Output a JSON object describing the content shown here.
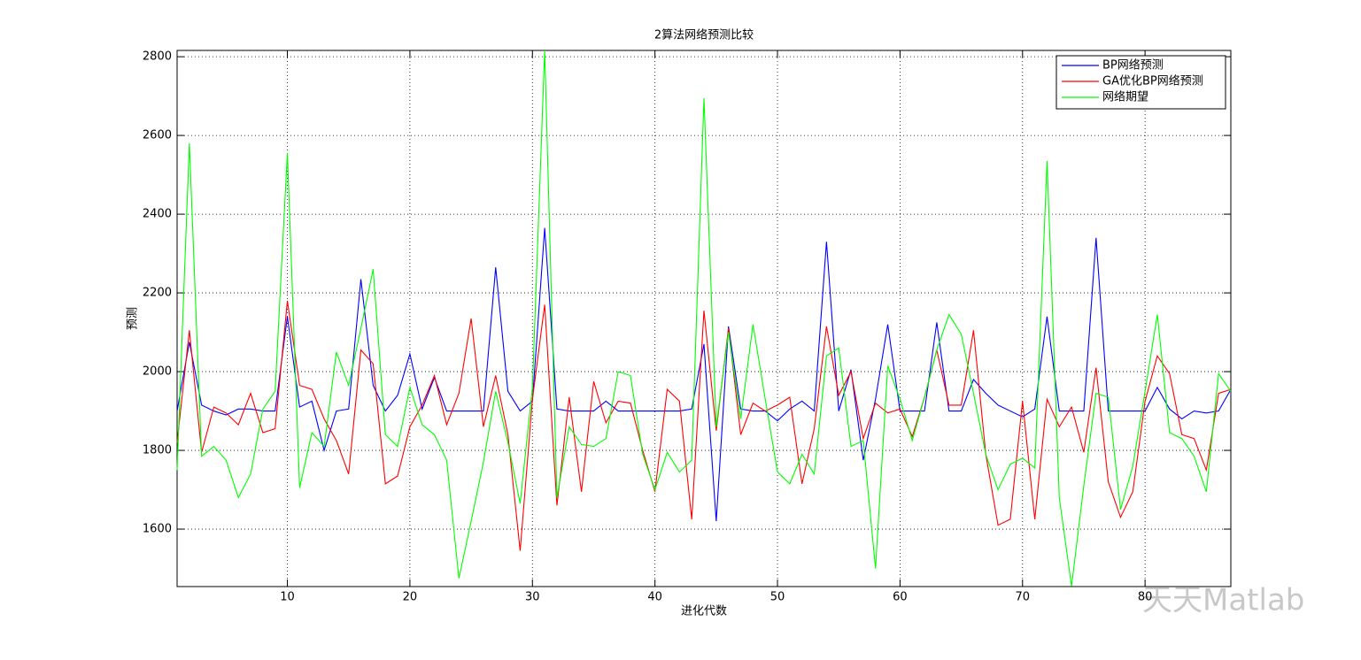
{
  "chart_data": {
    "type": "line",
    "title": "2算法网络预测比较",
    "x_label": "进化代数",
    "y_label": "预测",
    "x": [
      1,
      2,
      3,
      4,
      5,
      6,
      7,
      8,
      9,
      10,
      11,
      12,
      13,
      14,
      15,
      16,
      17,
      18,
      19,
      20,
      21,
      22,
      23,
      24,
      25,
      26,
      27,
      28,
      29,
      30,
      31,
      32,
      33,
      34,
      35,
      36,
      37,
      38,
      39,
      40,
      41,
      42,
      43,
      44,
      45,
      46,
      47,
      48,
      49,
      50,
      51,
      52,
      53,
      54,
      55,
      56,
      57,
      58,
      59,
      60,
      61,
      62,
      63,
      64,
      65,
      66,
      67,
      68,
      69,
      70,
      71,
      72,
      73,
      74,
      75,
      76,
      77,
      78,
      79,
      80,
      81,
      82,
      83,
      84,
      85,
      86,
      87
    ],
    "series": [
      {
        "name": "BP网络预测",
        "color": "#0000ff",
        "values": [
          1900,
          2075,
          1915,
          1900,
          1890,
          1905,
          1905,
          1900,
          1900,
          2140,
          1910,
          1925,
          1800,
          1900,
          1905,
          2235,
          1965,
          1900,
          1940,
          2045,
          1905,
          1985,
          1900,
          1900,
          1900,
          1900,
          2265,
          1950,
          1900,
          1925,
          2365,
          1905,
          1900,
          1900,
          1900,
          1925,
          1900,
          1900,
          1900,
          1900,
          1900,
          1900,
          1905,
          2070,
          1620,
          2115,
          1905,
          1900,
          1900,
          1875,
          1905,
          1925,
          1900,
          2330,
          1900,
          2005,
          1775,
          1930,
          2120,
          1900,
          1900,
          1900,
          2125,
          1900,
          1900,
          1980,
          1945,
          1915,
          1900,
          1885,
          1905,
          2140,
          1900,
          1900,
          1900,
          2340,
          1900,
          1900,
          1900,
          1900,
          1960,
          1905,
          1880,
          1900,
          1895,
          1900,
          1955
        ]
      },
      {
        "name": "GA优化BP网络预测",
        "color": "#ff0000",
        "values": [
          1820,
          2105,
          1795,
          1910,
          1895,
          1865,
          1945,
          1845,
          1855,
          2180,
          1965,
          1955,
          1880,
          1825,
          1740,
          2055,
          2020,
          1715,
          1735,
          1860,
          1915,
          1990,
          1865,
          1945,
          2135,
          1860,
          1990,
          1840,
          1545,
          1930,
          2170,
          1660,
          1935,
          1695,
          1975,
          1870,
          1925,
          1920,
          1800,
          1695,
          1955,
          1925,
          1625,
          2155,
          1850,
          2110,
          1840,
          1920,
          1900,
          1915,
          1935,
          1715,
          1855,
          2115,
          1940,
          2000,
          1830,
          1920,
          1895,
          1905,
          1835,
          1935,
          2055,
          1915,
          1915,
          2105,
          1790,
          1610,
          1625,
          1925,
          1625,
          1930,
          1860,
          1910,
          1795,
          2010,
          1720,
          1630,
          1695,
          1925,
          2040,
          1995,
          1840,
          1830,
          1750,
          1945,
          1955
        ]
      },
      {
        "name": "网络期望",
        "color": "#00ff00",
        "values": [
          1750,
          2580,
          1785,
          1810,
          1775,
          1680,
          1740,
          1905,
          1950,
          2555,
          1705,
          1845,
          1810,
          2050,
          1965,
          2110,
          2260,
          1840,
          1810,
          1960,
          1865,
          1840,
          1775,
          1475,
          1620,
          1770,
          1950,
          1820,
          1665,
          1960,
          2816,
          1680,
          1860,
          1815,
          1810,
          1830,
          2000,
          1990,
          1790,
          1700,
          1795,
          1745,
          1775,
          2695,
          1860,
          2100,
          1880,
          2120,
          1930,
          1745,
          1715,
          1790,
          1740,
          2040,
          2060,
          1810,
          1825,
          1500,
          2015,
          1930,
          1825,
          1935,
          2055,
          2145,
          2095,
          1945,
          1790,
          1700,
          1765,
          1780,
          1755,
          2535,
          1680,
          1455,
          1710,
          1945,
          1935,
          1650,
          1760,
          1950,
          2145,
          1845,
          1830,
          1785,
          1695,
          1995,
          1950
        ]
      }
    ],
    "xlim": [
      1,
      87
    ],
    "ylim": [
      1454,
      2816
    ],
    "xticks": [
      10,
      20,
      30,
      40,
      50,
      60,
      70,
      80
    ],
    "yticks": [
      1600,
      1800,
      2000,
      2200,
      2400,
      2600,
      2800
    ],
    "grid": true,
    "legend": "northeast",
    "watermark": "天天Matlab"
  }
}
